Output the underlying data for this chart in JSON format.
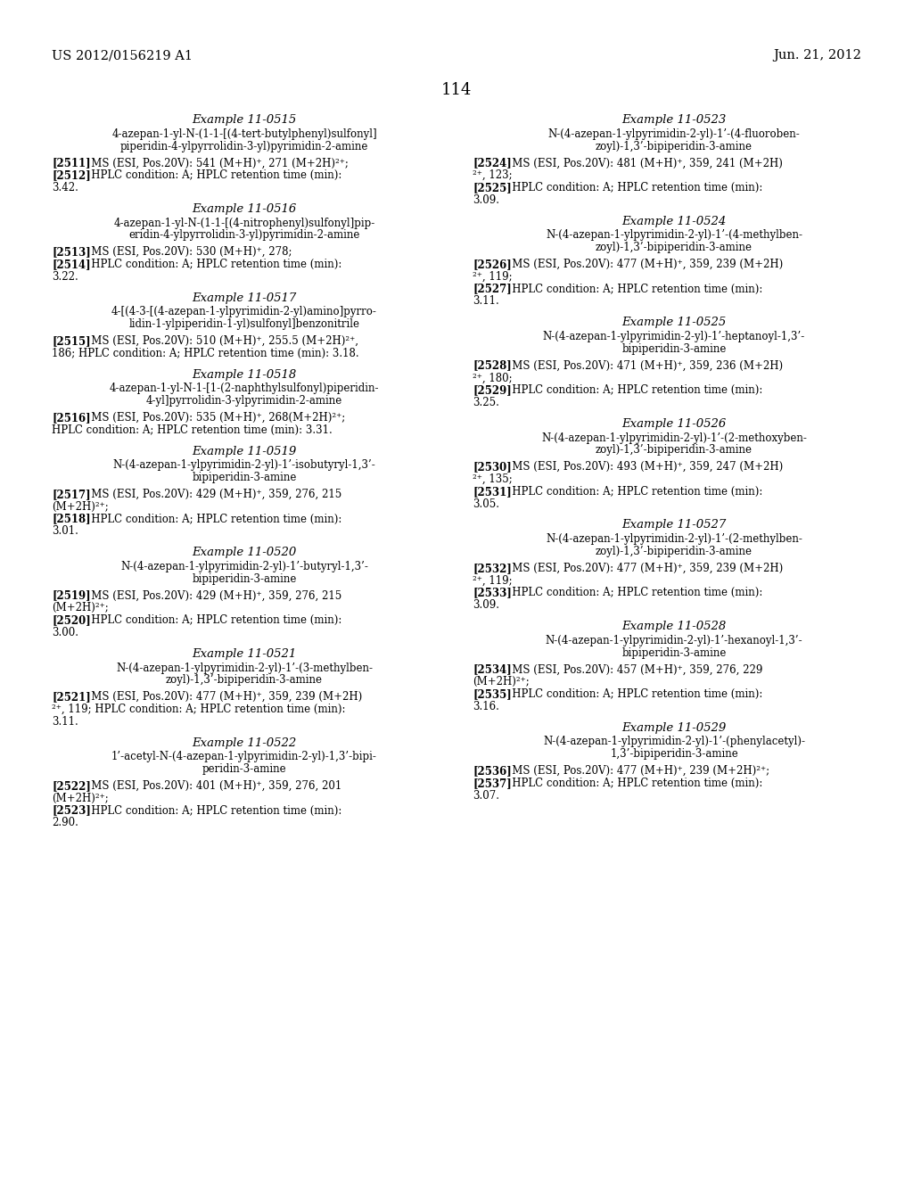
{
  "header_left": "US 2012/0156219 A1",
  "header_right": "Jun. 21, 2012",
  "page_number": "114",
  "background_color": "#ffffff",
  "text_color": "#000000",
  "font_size_header": 10.5,
  "font_size_page": 13,
  "font_size_example_title": 9.5,
  "font_size_body": 8.5,
  "left_column": [
    {
      "example": "Example 11-0515",
      "compound": [
        "4-azepan-1-yl-N-(1-1-[(4-tert-butylphenyl)sulfonyl]",
        "piperidin-4-ylpyrrolidin-3-yl)pyrimidin-2-amine"
      ],
      "data_lines": [
        {
          "bold": "[2511]",
          "rest": "   MS (ESI, Pos.20V): 541 (M+H)⁺, 271 (M+2H)²⁺;"
        },
        {
          "bold": "[2512]",
          "rest": "   HPLC condition: A; HPLC retention time (min):"
        },
        {
          "bold": "",
          "rest": "3.42."
        }
      ]
    },
    {
      "example": "Example 11-0516",
      "compound": [
        "4-azepan-1-yl-N-(1-1-[(4-nitrophenyl)sulfonyl]pip-",
        "eridin-4-ylpyrrolidin-3-yl)pyrimidin-2-amine"
      ],
      "data_lines": [
        {
          "bold": "[2513]",
          "rest": "   MS (ESI, Pos.20V): 530 (M+H)⁺, 278;"
        },
        {
          "bold": "[2514]",
          "rest": "   HPLC condition: A; HPLC retention time (min):"
        },
        {
          "bold": "",
          "rest": "3.22."
        }
      ]
    },
    {
      "example": "Example 11-0517",
      "compound": [
        "4-[(4-3-[(4-azepan-1-ylpyrimidin-2-yl)amino]pyrro-",
        "lidin-1-ylpiperidin-1-yl)sulfonyl]benzonitrile"
      ],
      "data_lines": [
        {
          "bold": "[2515]",
          "rest": "   MS (ESI, Pos.20V): 510 (M+H)⁺, 255.5 (M+2H)²⁺,"
        },
        {
          "bold": "",
          "rest": "186; HPLC condition: A; HPLC retention time (min): 3.18."
        }
      ]
    },
    {
      "example": "Example 11-0518",
      "compound": [
        "4-azepan-1-yl-N-1-[1-(2-naphthylsulfonyl)piperidin-",
        "4-yl]pyrrolidin-3-ylpyrimidin-2-amine"
      ],
      "data_lines": [
        {
          "bold": "[2516]",
          "rest": "   MS (ESI, Pos.20V): 535 (M+H)⁺, 268(M+2H)²⁺;"
        },
        {
          "bold": "",
          "rest": "HPLC condition: A; HPLC retention time (min): 3.31."
        }
      ]
    },
    {
      "example": "Example 11-0519",
      "compound": [
        "N-(4-azepan-1-ylpyrimidin-2-yl)-1’-isobutyryl-1,3’-",
        "bipiperidin-3-amine"
      ],
      "data_lines": [
        {
          "bold": "[2517]",
          "rest": "   MS (ESI, Pos.20V): 429 (M+H)⁺, 359, 276, 215"
        },
        {
          "bold": "",
          "rest": "(M+2H)²⁺;"
        },
        {
          "bold": "[2518]",
          "rest": "   HPLC condition: A; HPLC retention time (min):"
        },
        {
          "bold": "",
          "rest": "3.01."
        }
      ]
    },
    {
      "example": "Example 11-0520",
      "compound": [
        "N-(4-azepan-1-ylpyrimidin-2-yl)-1’-butyryl-1,3’-",
        "bipiperidin-3-amine"
      ],
      "data_lines": [
        {
          "bold": "[2519]",
          "rest": "   MS (ESI, Pos.20V): 429 (M+H)⁺, 359, 276, 215"
        },
        {
          "bold": "",
          "rest": "(M+2H)²⁺;"
        },
        {
          "bold": "[2520]",
          "rest": "   HPLC condition: A; HPLC retention time (min):"
        },
        {
          "bold": "",
          "rest": "3.00."
        }
      ]
    },
    {
      "example": "Example 11-0521",
      "compound": [
        "N-(4-azepan-1-ylpyrimidin-2-yl)-1’-(3-methylben-",
        "zoyl)-1,3’-bipiperidin-3-amine"
      ],
      "data_lines": [
        {
          "bold": "[2521]",
          "rest": "   MS (ESI, Pos.20V): 477 (M+H)⁺, 359, 239 (M+2H)"
        },
        {
          "bold": "",
          "rest": "²⁺, 119; HPLC condition: A; HPLC retention time (min):"
        },
        {
          "bold": "",
          "rest": "3.11."
        }
      ]
    },
    {
      "example": "Example 11-0522",
      "compound": [
        "1’-acetyl-N-(4-azepan-1-ylpyrimidin-2-yl)-1,3’-bipi-",
        "peridin-3-amine"
      ],
      "data_lines": [
        {
          "bold": "[2522]",
          "rest": "   MS (ESI, Pos.20V): 401 (M+H)⁺, 359, 276, 201"
        },
        {
          "bold": "",
          "rest": "(M+2H)²⁺;"
        },
        {
          "bold": "[2523]",
          "rest": "   HPLC condition: A; HPLC retention time (min):"
        },
        {
          "bold": "",
          "rest": "2.90."
        }
      ]
    }
  ],
  "right_column": [
    {
      "example": "Example 11-0523",
      "compound": [
        "N-(4-azepan-1-ylpyrimidin-2-yl)-1’-(4-fluoroben-",
        "zoyl)-1,3’-bipiperidin-3-amine"
      ],
      "data_lines": [
        {
          "bold": "[2524]",
          "rest": "   MS (ESI, Pos.20V): 481 (M+H)⁺, 359, 241 (M+2H)"
        },
        {
          "bold": "",
          "rest": "²⁺, 123;"
        },
        {
          "bold": "[2525]",
          "rest": "   HPLC condition: A; HPLC retention time (min):"
        },
        {
          "bold": "",
          "rest": "3.09."
        }
      ]
    },
    {
      "example": "Example 11-0524",
      "compound": [
        "N-(4-azepan-1-ylpyrimidin-2-yl)-1’-(4-methylben-",
        "zoyl)-1,3’-bipiperidin-3-amine"
      ],
      "data_lines": [
        {
          "bold": "[2526]",
          "rest": "   MS (ESI, Pos.20V): 477 (M+H)⁺, 359, 239 (M+2H)"
        },
        {
          "bold": "",
          "rest": "²⁺, 119;"
        },
        {
          "bold": "[2527]",
          "rest": "   HPLC condition: A; HPLC retention time (min):"
        },
        {
          "bold": "",
          "rest": "3.11."
        }
      ]
    },
    {
      "example": "Example 11-0525",
      "compound": [
        "N-(4-azepan-1-ylpyrimidin-2-yl)-1’-heptanoyl-1,3’-",
        "bipiperidin-3-amine"
      ],
      "data_lines": [
        {
          "bold": "[2528]",
          "rest": "   MS (ESI, Pos.20V): 471 (M+H)⁺, 359, 236 (M+2H)"
        },
        {
          "bold": "",
          "rest": "²⁺, 180;"
        },
        {
          "bold": "[2529]",
          "rest": "   HPLC condition: A; HPLC retention time (min):"
        },
        {
          "bold": "",
          "rest": "3.25."
        }
      ]
    },
    {
      "example": "Example 11-0526",
      "compound": [
        "N-(4-azepan-1-ylpyrimidin-2-yl)-1’-(2-methoxyben-",
        "zoyl)-1,3’-bipiperidin-3-amine"
      ],
      "data_lines": [
        {
          "bold": "[2530]",
          "rest": "   MS (ESI, Pos.20V): 493 (M+H)⁺, 359, 247 (M+2H)"
        },
        {
          "bold": "",
          "rest": "²⁺, 135;"
        },
        {
          "bold": "[2531]",
          "rest": "   HPLC condition: A; HPLC retention time (min):"
        },
        {
          "bold": "",
          "rest": "3.05."
        }
      ]
    },
    {
      "example": "Example 11-0527",
      "compound": [
        "N-(4-azepan-1-ylpyrimidin-2-yl)-1’-(2-methylben-",
        "zoyl)-1,3’-bipiperidin-3-amine"
      ],
      "data_lines": [
        {
          "bold": "[2532]",
          "rest": "   MS (ESI, Pos.20V): 477 (M+H)⁺, 359, 239 (M+2H)"
        },
        {
          "bold": "",
          "rest": "²⁺, 119;"
        },
        {
          "bold": "[2533]",
          "rest": "   HPLC condition: A; HPLC retention time (min):"
        },
        {
          "bold": "",
          "rest": "3.09."
        }
      ]
    },
    {
      "example": "Example 11-0528",
      "compound": [
        "N-(4-azepan-1-ylpyrimidin-2-yl)-1’-hexanoyl-1,3’-",
        "bipiperidin-3-amine"
      ],
      "data_lines": [
        {
          "bold": "[2534]",
          "rest": "   MS (ESI, Pos.20V): 457 (M+H)⁺, 359, 276, 229"
        },
        {
          "bold": "",
          "rest": "(M+2H)²⁺;"
        },
        {
          "bold": "[2535]",
          "rest": "   HPLC condition: A; HPLC retention time (min):"
        },
        {
          "bold": "",
          "rest": "3.16."
        }
      ]
    },
    {
      "example": "Example 11-0529",
      "compound": [
        "N-(4-azepan-1-ylpyrimidin-2-yl)-1’-(phenylacetyl)-",
        "1,3’-bipiperidin-3-amine"
      ],
      "data_lines": [
        {
          "bold": "[2536]",
          "rest": "   MS (ESI, Pos.20V): 477 (M+H)⁺, 239 (M+2H)²⁺;"
        },
        {
          "bold": "[2537]",
          "rest": "   HPLC condition: A; HPLC retention time (min):"
        },
        {
          "bold": "",
          "rest": "3.07."
        }
      ]
    }
  ]
}
